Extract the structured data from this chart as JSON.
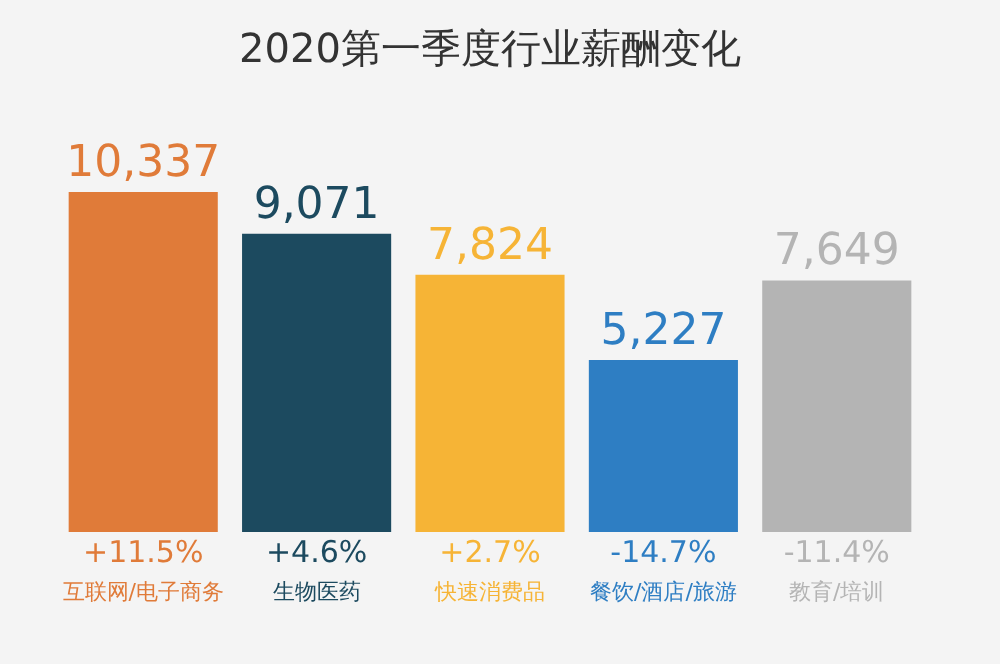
{
  "chart_data": {
    "type": "bar",
    "title": "2020第一季度行业薪酬变化",
    "categories": [
      "互联网/电子商务",
      "生物医药",
      "快速消费品",
      "餐饮/酒店/旅游",
      "教育/培训"
    ],
    "values": [
      10337,
      9071,
      7824,
      5227,
      7649
    ],
    "value_labels": [
      "10,337",
      "9,071",
      "7,824",
      "5,227",
      "7,649"
    ],
    "colors": [
      "#e07b39",
      "#1c4a5f",
      "#f6b436",
      "#2e7ec3",
      "#b4b4b4"
    ],
    "annotations": [
      "+11.5%",
      "+4.6%",
      "+2.7%",
      "-14.7%",
      "-11.4%"
    ],
    "grid": false,
    "legend": false
  }
}
